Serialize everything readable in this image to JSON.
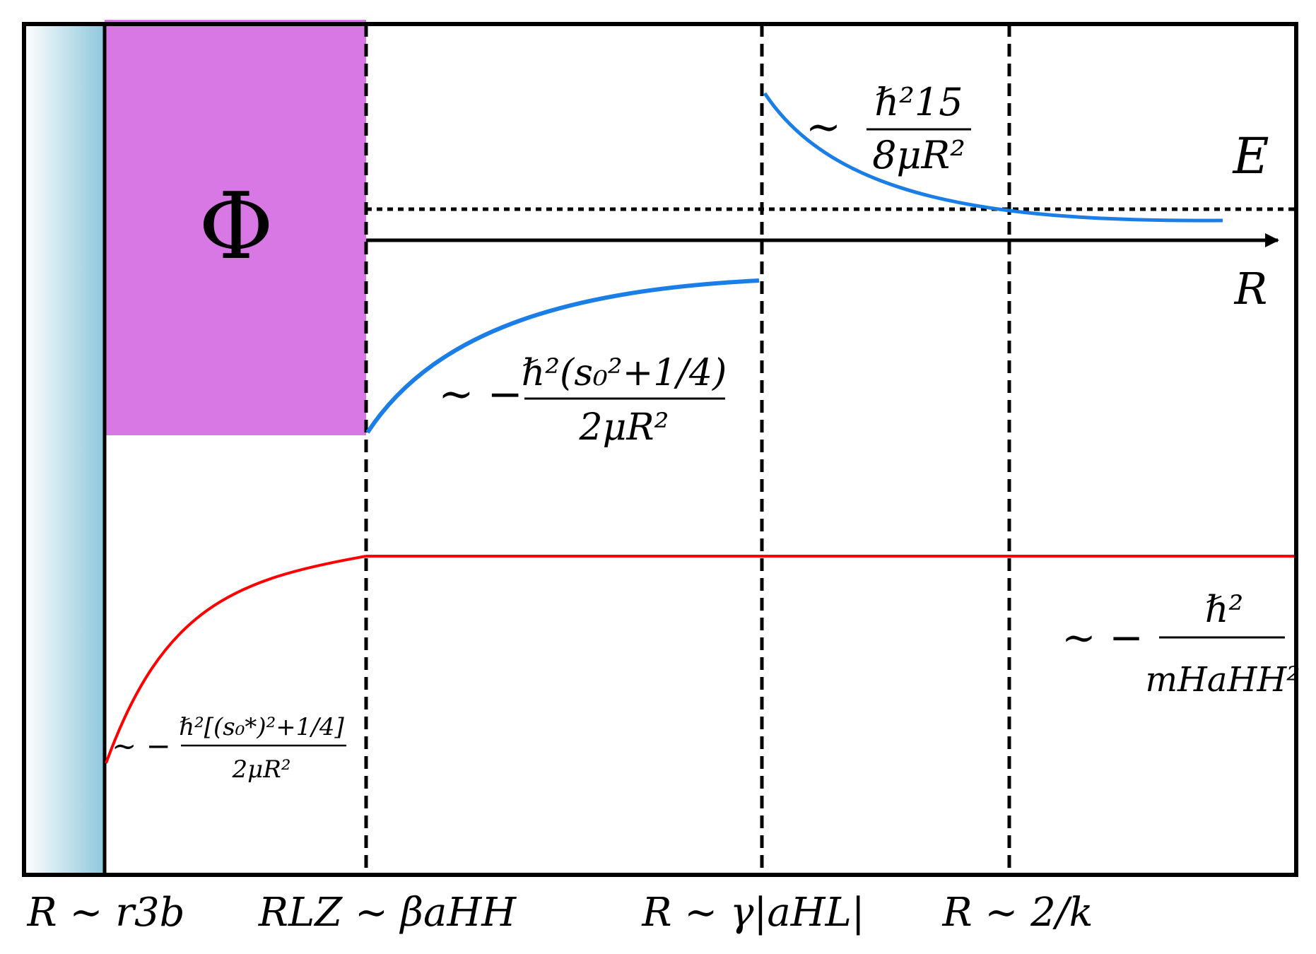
{
  "symbols": {
    "phi": "Φ",
    "energy": "E",
    "axis_r": "R"
  },
  "curve_labels": {
    "centrifugal_barrier": {
      "prefix": "∼",
      "numerator": "ℏ²15",
      "denominator": "8μR²"
    },
    "efimov_potential": {
      "prefix": "∼ −",
      "numerator": "ℏ²(s₀²+1/4)",
      "denominator": "2μR²"
    },
    "short_range_potential": {
      "prefix": "∼ −",
      "numerator": "ℏ²[(s₀*)²+1/4]",
      "denominator": "2μR²"
    },
    "dimer_energy": {
      "prefix": "∼ −",
      "numerator": "ℏ²",
      "denominator": "mHaHH²"
    }
  },
  "region_labels": {
    "r3b": "R ∼ r3b",
    "rlz": "RLZ ∼ βaHH",
    "ahl": "R ∼ γ|aHL|",
    "k": "R ∼ 2/k"
  },
  "colors": {
    "red_curve": "#ff0000",
    "blue_curve": "#1a7ee6",
    "phi_region": "#d878e5",
    "wall_gradient_start": "#ffffff",
    "wall_gradient_end": "#8ec8dc"
  }
}
